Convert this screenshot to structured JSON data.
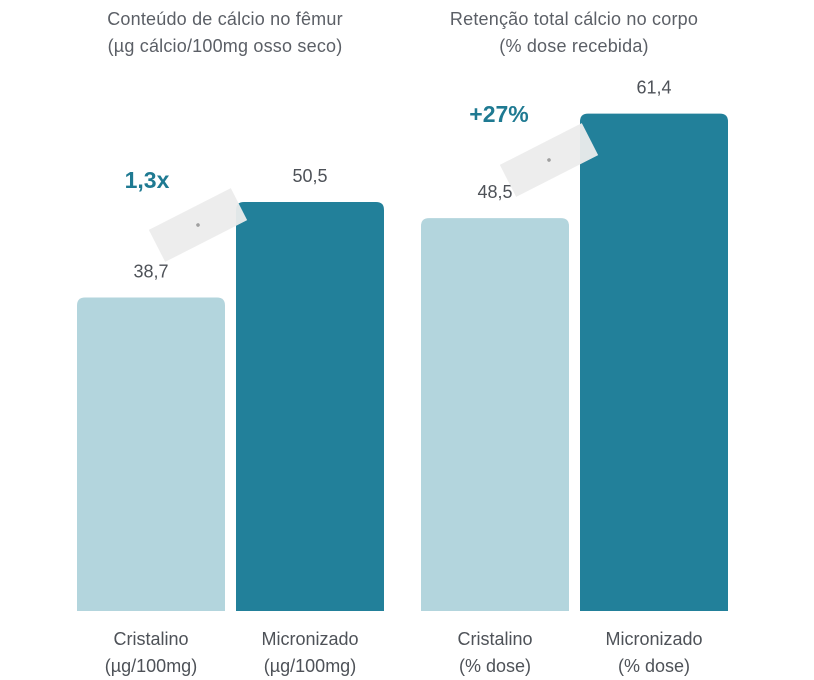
{
  "chart_data": [
    {
      "type": "bar",
      "title": [
        "Conteúdo de cálcio no fêmur",
        "(µg cálcio/100mg osso seco)"
      ],
      "categories": [
        [
          "Cristalino",
          "(µg/100mg)"
        ],
        [
          "Micronizado",
          "(µg/100mg)"
        ]
      ],
      "values": [
        38.7,
        50.5
      ],
      "value_labels": [
        "38,7",
        "50,5"
      ],
      "annotation": "1,3x",
      "ylim": [
        0,
        70
      ],
      "grid": false,
      "legend": "none"
    },
    {
      "type": "bar",
      "title": [
        "Retenção total cálcio no corpo",
        "(% dose recebida)"
      ],
      "categories": [
        [
          "Cristalino",
          "(% dose)"
        ],
        [
          "Micronizado",
          "(% dose)"
        ]
      ],
      "values": [
        48.5,
        61.4
      ],
      "value_labels": [
        "48,5",
        "61,4"
      ],
      "annotation": "+27%",
      "ylim": [
        0,
        70
      ],
      "grid": false,
      "legend": "none"
    }
  ],
  "colors": {
    "light_bar": "#b3d5dd",
    "dark_bar": "#22809a",
    "annotation": "#1f7a92",
    "text": "#4e5258",
    "arrow_band": "#ececec"
  }
}
